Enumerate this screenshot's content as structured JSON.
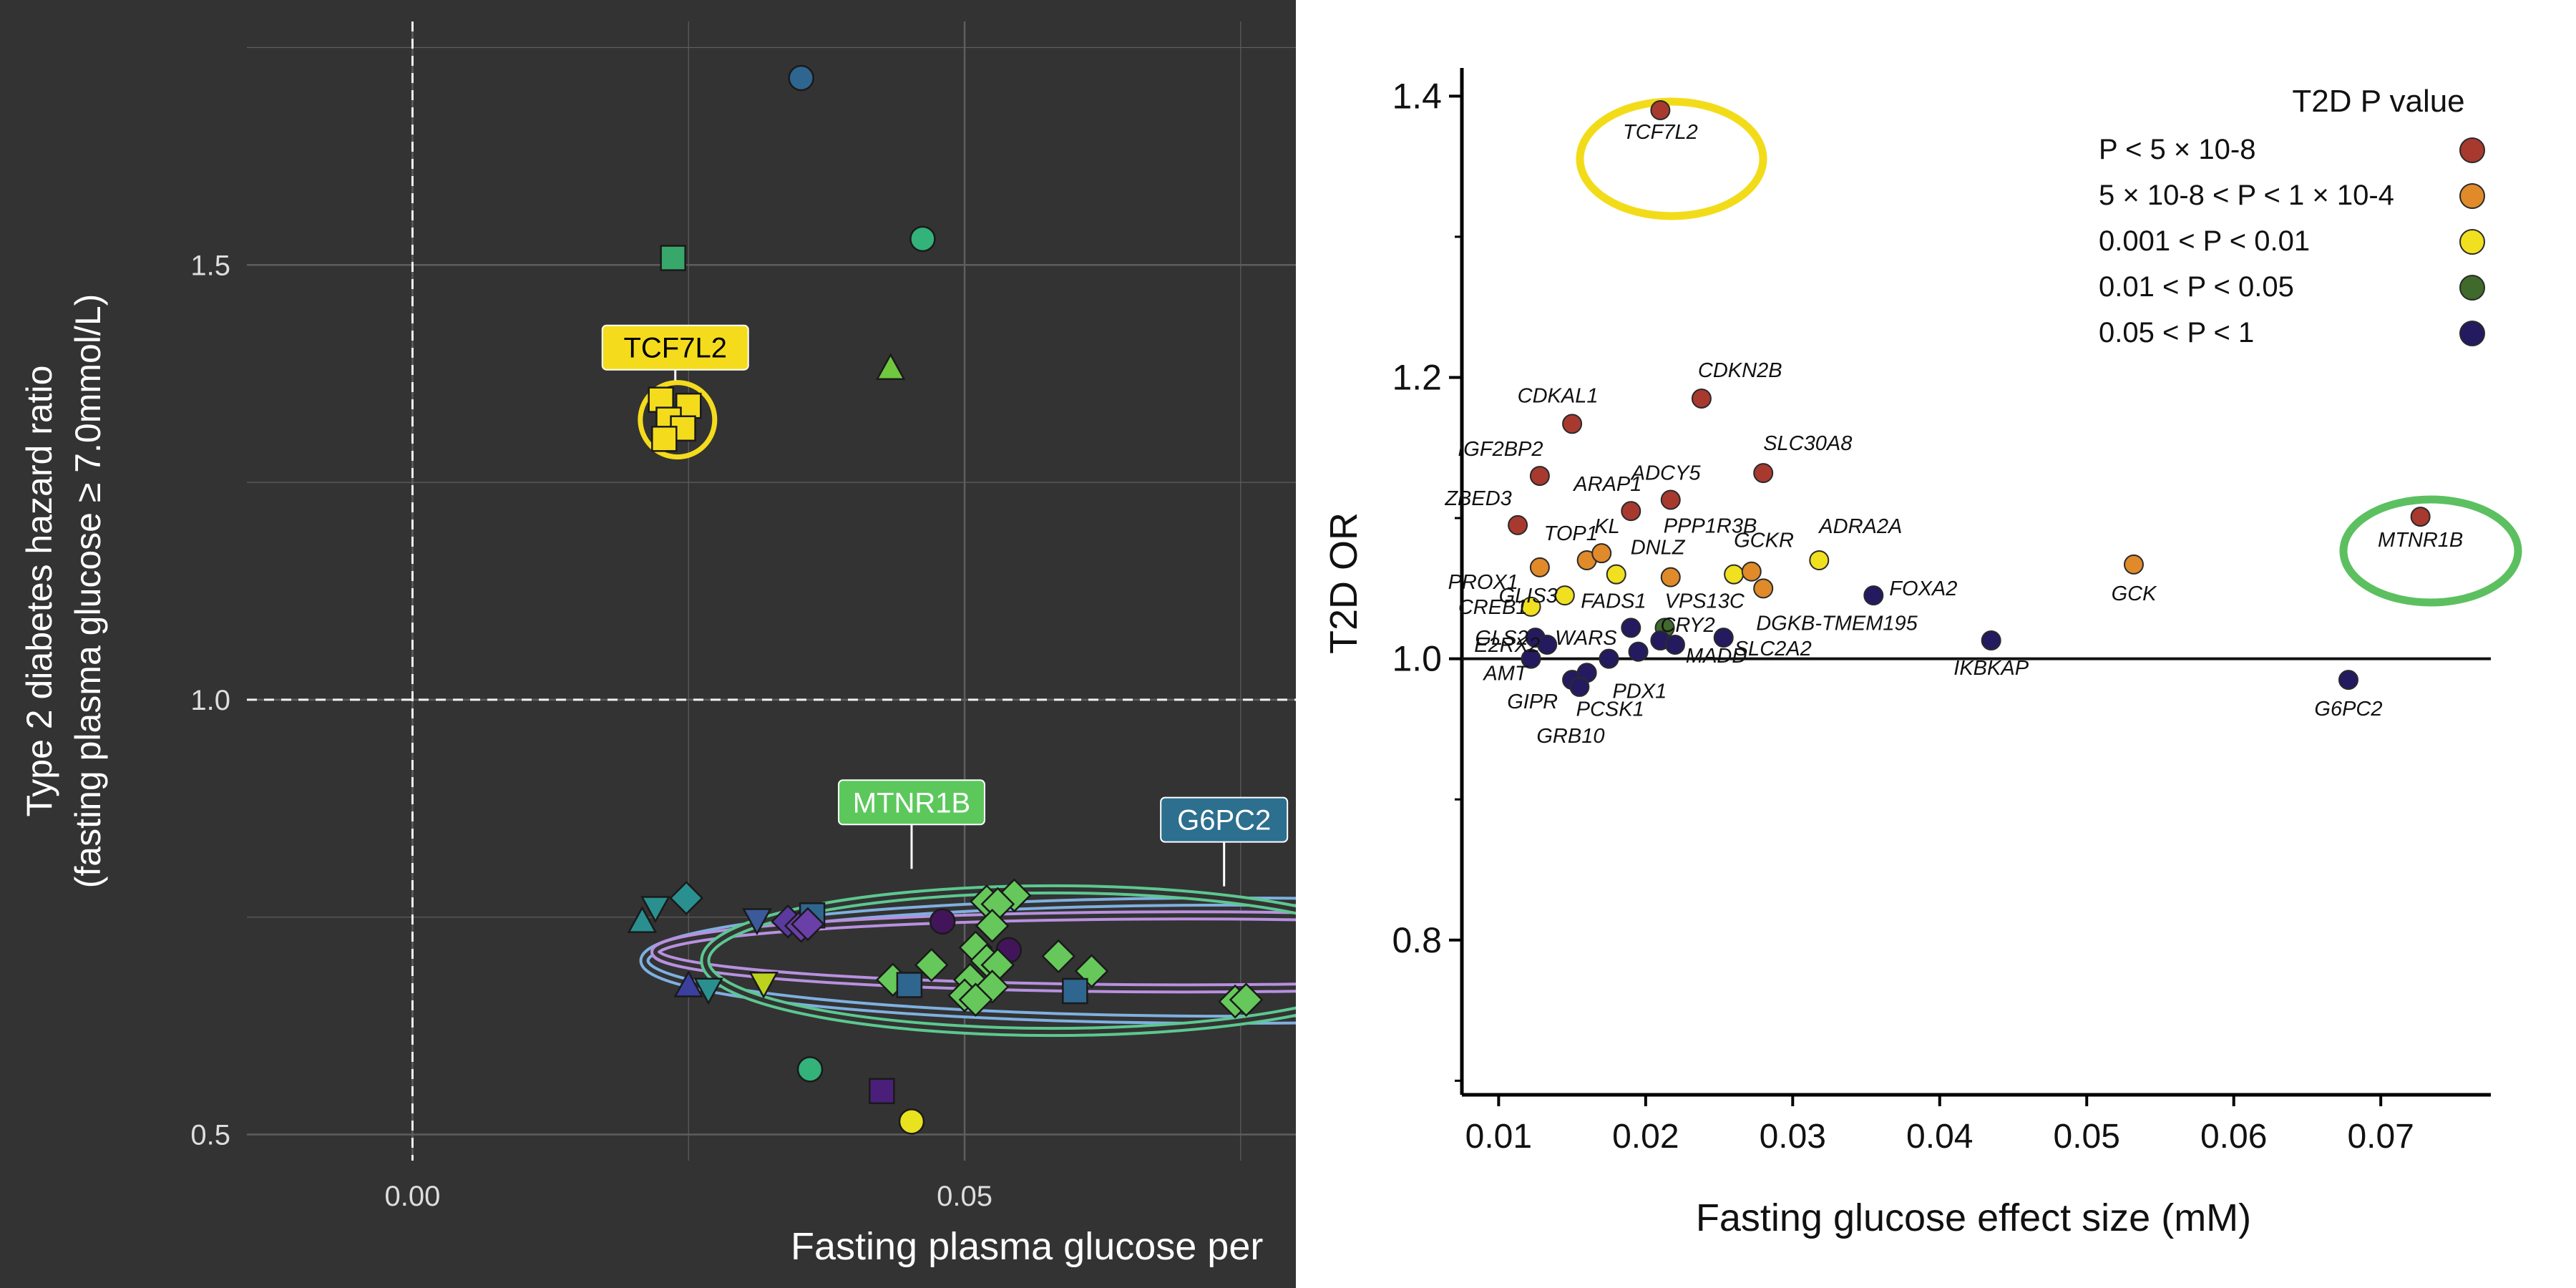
{
  "chart_data": [
    {
      "type": "scatter",
      "panel": "left",
      "theme": "dark",
      "title": "",
      "xlabel": "Fasting plasma glucose per",
      "ylabel_lines": [
        "Type 2 diabetes hazard ratio",
        "(fasting plasma glucose  ≥ 7.0mmol/L)"
      ],
      "xlim": [
        -0.015,
        0.08
      ],
      "ylim": [
        0.47,
        1.78
      ],
      "x_ticks": [
        {
          "value": 0.0,
          "label": "0.00"
        },
        {
          "value": 0.05,
          "label": "0.05"
        }
      ],
      "y_ticks": [
        {
          "value": 0.5,
          "label": "0.5"
        },
        {
          "value": 1.0,
          "label": "1.0"
        },
        {
          "value": 1.5,
          "label": "1.5"
        }
      ],
      "reference_lines": {
        "x": 0,
        "y": 1.0
      },
      "grid": true,
      "colors": {
        "background": "#333333",
        "grid": "#5e5e5e",
        "text": "#ffffff",
        "tick_text": "#dddddd"
      },
      "points": [
        {
          "x": 0.0352,
          "y": 1.715,
          "shape": "circle",
          "color": "#2f6690"
        },
        {
          "x": 0.0462,
          "y": 1.53,
          "shape": "circle",
          "color": "#33b27a"
        },
        {
          "x": 0.0236,
          "y": 1.508,
          "shape": "square",
          "color": "#38a86a"
        },
        {
          "x": 0.0433,
          "y": 1.38,
          "shape": "triangle",
          "color": "#70c83e"
        },
        {
          "x": 0.0225,
          "y": 1.345,
          "shape": "square",
          "color": "#f4dc1d"
        },
        {
          "x": 0.025,
          "y": 1.338,
          "shape": "square",
          "color": "#f4dc1d"
        },
        {
          "x": 0.0232,
          "y": 1.322,
          "shape": "square",
          "color": "#f4dc1d"
        },
        {
          "x": 0.0245,
          "y": 1.312,
          "shape": "square",
          "color": "#f4dc1d"
        },
        {
          "x": 0.0228,
          "y": 1.3,
          "shape": "square",
          "color": "#f4dc1d"
        },
        {
          "x": 0.022,
          "y": 0.762,
          "shape": "triangle-down",
          "color": "#2a8f8f"
        },
        {
          "x": 0.0208,
          "y": 0.744,
          "shape": "triangle",
          "color": "#2a8f8f"
        },
        {
          "x": 0.0248,
          "y": 0.772,
          "shape": "diamond",
          "color": "#2a8f8f"
        },
        {
          "x": 0.0312,
          "y": 0.748,
          "shape": "triangle-down",
          "color": "#3b5a9a"
        },
        {
          "x": 0.034,
          "y": 0.745,
          "shape": "diamond",
          "color": "#5a3a9e"
        },
        {
          "x": 0.0352,
          "y": 0.74,
          "shape": "diamond",
          "color": "#6a3fa8"
        },
        {
          "x": 0.0362,
          "y": 0.752,
          "shape": "square",
          "color": "#2f6690"
        },
        {
          "x": 0.0358,
          "y": 0.742,
          "shape": "diamond",
          "color": "#6a3fa8"
        },
        {
          "x": 0.048,
          "y": 0.745,
          "shape": "circle",
          "color": "#42155a"
        },
        {
          "x": 0.0545,
          "y": 0.775,
          "shape": "diamond",
          "color": "#66c85a"
        },
        {
          "x": 0.052,
          "y": 0.768,
          "shape": "diamond",
          "color": "#66c85a"
        },
        {
          "x": 0.053,
          "y": 0.765,
          "shape": "diamond",
          "color": "#66c85a"
        },
        {
          "x": 0.0525,
          "y": 0.74,
          "shape": "diamond",
          "color": "#66c85a"
        },
        {
          "x": 0.051,
          "y": 0.715,
          "shape": "diamond",
          "color": "#66c85a"
        },
        {
          "x": 0.054,
          "y": 0.712,
          "shape": "circle",
          "color": "#42155a"
        },
        {
          "x": 0.052,
          "y": 0.7,
          "shape": "diamond",
          "color": "#66c85a"
        },
        {
          "x": 0.053,
          "y": 0.695,
          "shape": "diamond",
          "color": "#66c85a"
        },
        {
          "x": 0.0585,
          "y": 0.705,
          "shape": "diamond",
          "color": "#66c85a"
        },
        {
          "x": 0.0615,
          "y": 0.688,
          "shape": "diamond",
          "color": "#66c85a"
        },
        {
          "x": 0.047,
          "y": 0.695,
          "shape": "diamond",
          "color": "#66c85a"
        },
        {
          "x": 0.0435,
          "y": 0.678,
          "shape": "diamond",
          "color": "#66c85a"
        },
        {
          "x": 0.0505,
          "y": 0.678,
          "shape": "diamond",
          "color": "#66c85a"
        },
        {
          "x": 0.0525,
          "y": 0.67,
          "shape": "diamond",
          "color": "#66c85a"
        },
        {
          "x": 0.05,
          "y": 0.66,
          "shape": "diamond",
          "color": "#66c85a"
        },
        {
          "x": 0.051,
          "y": 0.655,
          "shape": "diamond",
          "color": "#66c85a"
        },
        {
          "x": 0.045,
          "y": 0.672,
          "shape": "square",
          "color": "#2f6690"
        },
        {
          "x": 0.06,
          "y": 0.665,
          "shape": "square",
          "color": "#2f6690"
        },
        {
          "x": 0.0745,
          "y": 0.653,
          "shape": "diamond",
          "color": "#66c85a"
        },
        {
          "x": 0.0755,
          "y": 0.655,
          "shape": "diamond",
          "color": "#66c85a"
        },
        {
          "x": 0.025,
          "y": 0.67,
          "shape": "triangle",
          "color": "#3b3f9e"
        },
        {
          "x": 0.0268,
          "y": 0.668,
          "shape": "triangle-down",
          "color": "#2a8f8f"
        },
        {
          "x": 0.0318,
          "y": 0.675,
          "shape": "triangle-down",
          "color": "#bcd21e"
        },
        {
          "x": 0.036,
          "y": 0.575,
          "shape": "circle",
          "color": "#33b27a"
        },
        {
          "x": 0.0425,
          "y": 0.55,
          "shape": "square",
          "color": "#4a1f7a"
        },
        {
          "x": 0.0452,
          "y": 0.515,
          "shape": "circle",
          "color": "#e8e21f"
        }
      ],
      "ellipses": [
        {
          "name": "G6PC2",
          "cx": 0.074,
          "cy": 0.7,
          "rx": 0.053,
          "ry": 0.068,
          "color": "#7fb0e0"
        },
        {
          "name": "purple",
          "cx": 0.07,
          "cy": 0.71,
          "rx": 0.048,
          "ry": 0.042,
          "color": "#b890e0"
        },
        {
          "name": "MTNR1B",
          "cx": 0.058,
          "cy": 0.7,
          "rx": 0.0315,
          "ry": 0.082,
          "color": "#5cc890"
        }
      ],
      "annotations": [
        {
          "text": "TCF7L2",
          "x": 0.024,
          "y": 1.322,
          "color": "#f4dc1d",
          "text_color": "#000000"
        },
        {
          "text": "MTNR1B",
          "x": 0.0452,
          "y": 0.8,
          "color": "#5cc85c",
          "text_color": "#ffffff"
        },
        {
          "text": "G6PC2",
          "x": 0.0732,
          "y": 0.8,
          "color": "#2d6f8e",
          "text_color": "#ffffff"
        }
      ],
      "label_positions": [
        {
          "x": 0.0238,
          "y": 1.405
        },
        {
          "x": 0.0452,
          "y": 0.882
        },
        {
          "x": 0.0735,
          "y": 0.862
        }
      ]
    },
    {
      "type": "scatter",
      "panel": "right",
      "theme": "light",
      "title": "",
      "xlabel": "Fasting glucose effect size (mM)",
      "ylabel": "T2D OR",
      "xlim": [
        0.0075,
        0.077
      ],
      "ylim": [
        0.69,
        1.42
      ],
      "x_ticks": [
        {
          "value": 0.01,
          "label": "0.01"
        },
        {
          "value": 0.02,
          "label": "0.02"
        },
        {
          "value": 0.03,
          "label": "0.03"
        },
        {
          "value": 0.04,
          "label": "0.04"
        },
        {
          "value": 0.05,
          "label": "0.05"
        },
        {
          "value": 0.06,
          "label": "0.06"
        },
        {
          "value": 0.07,
          "label": "0.07"
        }
      ],
      "y_ticks": [
        {
          "value": 0.8,
          "label": "0.8"
        },
        {
          "value": 1.0,
          "label": "1.0"
        },
        {
          "value": 1.2,
          "label": "1.2"
        },
        {
          "value": 1.4,
          "label": "1.4"
        }
      ],
      "reference_line_y": 1.0,
      "legend": {
        "title": "T2D P value",
        "position": "top-right",
        "entries": [
          {
            "label": "P < 5 × 10-8",
            "color": "#a8392f"
          },
          {
            "label": "5 × 10-8 < P < 1 × 10-4",
            "color": "#e08a2a"
          },
          {
            "label": "0.001 < P < 0.01",
            "color": "#f0e020"
          },
          {
            "label": "0.01 < P < 0.05",
            "color": "#3f6a2c"
          },
          {
            "label": "0.05 < P < 1",
            "color": "#241a60"
          }
        ]
      },
      "points": [
        {
          "label": "TCF7L2",
          "x": 0.021,
          "y": 1.39,
          "p": 0
        },
        {
          "label": "CDKN2B",
          "x": 0.0238,
          "y": 1.185,
          "p": 0
        },
        {
          "label": "CDKAL1",
          "x": 0.015,
          "y": 1.167,
          "p": 0
        },
        {
          "label": "IGF2BP2",
          "x": 0.0128,
          "y": 1.13,
          "p": 0
        },
        {
          "label": "SLC30A8",
          "x": 0.028,
          "y": 1.132,
          "p": 0
        },
        {
          "label": "ZBED3",
          "x": 0.0113,
          "y": 1.095,
          "p": 0
        },
        {
          "label": "ARAP1",
          "x": 0.019,
          "y": 1.105,
          "p": 0
        },
        {
          "label": "ADCY5",
          "x": 0.0217,
          "y": 1.113,
          "p": 0
        },
        {
          "label": "MTNR1B",
          "x": 0.0727,
          "y": 1.101,
          "p": 0
        },
        {
          "label": "PROX1",
          "x": 0.0128,
          "y": 1.065,
          "p": 1
        },
        {
          "label": "TOP1",
          "x": 0.016,
          "y": 1.07,
          "p": 1
        },
        {
          "label": "KL",
          "x": 0.017,
          "y": 1.075,
          "p": 1
        },
        {
          "label": "DNLZ",
          "x": 0.018,
          "y": 1.06,
          "p": 2
        },
        {
          "label": "PPP1R3B",
          "x": 0.0217,
          "y": 1.058,
          "p": 1
        },
        {
          "label": "GCKR",
          "x": 0.026,
          "y": 1.06,
          "p": 2
        },
        {
          "label": "",
          "x": 0.0272,
          "y": 1.062,
          "p": 1
        },
        {
          "label": "DGKB-TMEM195",
          "x": 0.028,
          "y": 1.05,
          "p": 1
        },
        {
          "label": "ADRA2A",
          "x": 0.0318,
          "y": 1.07,
          "p": 2
        },
        {
          "label": "GCK",
          "x": 0.0532,
          "y": 1.067,
          "p": 1
        },
        {
          "label": "GLIS3",
          "x": 0.0145,
          "y": 1.045,
          "p": 2
        },
        {
          "label": "CREB1",
          "x": 0.0122,
          "y": 1.037,
          "p": 2
        },
        {
          "label": "FOXA2",
          "x": 0.0355,
          "y": 1.045,
          "p": 4
        },
        {
          "label": "FADS1",
          "x": 0.019,
          "y": 1.022,
          "p": 4
        },
        {
          "label": "VPS13C",
          "x": 0.0213,
          "y": 1.022,
          "p": 3
        },
        {
          "label": "CRY2",
          "x": 0.021,
          "y": 1.013,
          "p": 4
        },
        {
          "label": "GLS2",
          "x": 0.0125,
          "y": 1.015,
          "p": 4
        },
        {
          "label": "IKBKAP",
          "x": 0.0435,
          "y": 1.013,
          "p": 4
        },
        {
          "label": "E2RX2",
          "x": 0.0133,
          "y": 1.01,
          "p": 4
        },
        {
          "label": "WARS",
          "x": 0.0195,
          "y": 1.005,
          "p": 4
        },
        {
          "label": "MADD",
          "x": 0.022,
          "y": 1.01,
          "p": 4
        },
        {
          "label": "SLC2A2",
          "x": 0.0253,
          "y": 1.015,
          "p": 4
        },
        {
          "label": "AMT",
          "x": 0.0122,
          "y": 1.0,
          "p": 4
        },
        {
          "label": "PDX1",
          "x": 0.0175,
          "y": 1.0,
          "p": 4
        },
        {
          "label": "GIPR",
          "x": 0.015,
          "y": 0.985,
          "p": 4
        },
        {
          "label": "PCSK1",
          "x": 0.016,
          "y": 0.99,
          "p": 4
        },
        {
          "label": "GRB10",
          "x": 0.0155,
          "y": 0.98,
          "p": 4
        },
        {
          "label": "G6PC2",
          "x": 0.0678,
          "y": 0.985,
          "p": 4
        }
      ],
      "callouts": [
        {
          "target": "TCF7L2",
          "color": "#f2dc1a"
        },
        {
          "target": "MTNR1B",
          "color": "#5cc060"
        }
      ]
    }
  ]
}
